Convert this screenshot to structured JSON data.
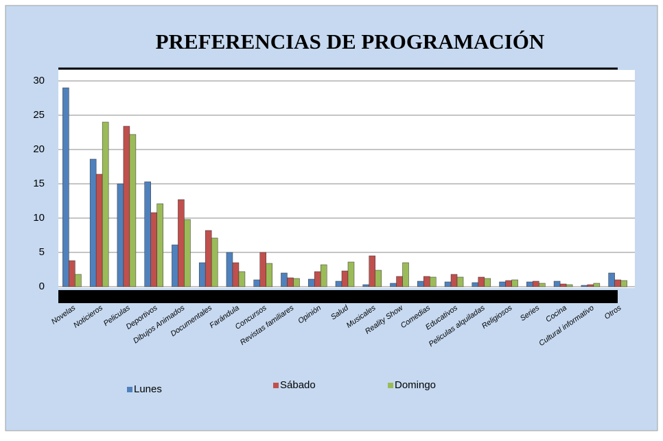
{
  "chart_data": {
    "type": "bar",
    "title": "PREFERENCIAS DE PROGRAMACIÓN",
    "categories": [
      "Novelas",
      "Noticieros",
      "Peliculas",
      "Deportivos",
      "Dibujos Animados",
      "Documentales",
      "Farándula",
      "Concursos",
      "Revistas familiares",
      "Opinión",
      "Salud",
      "Musicales",
      "Reality Show",
      "Comedias",
      "Educativos",
      "Peliculas alquiladas",
      "Religiosos",
      "Series",
      "Cocina",
      "Cultural informativo",
      "Otros"
    ],
    "series": [
      {
        "name": "Lunes",
        "color": "#4f81bd",
        "values": [
          29,
          18.6,
          15,
          15.3,
          6.1,
          3.5,
          5,
          1,
          2,
          1.1,
          0.8,
          0.3,
          0.5,
          0.8,
          0.7,
          0.6,
          0.7,
          0.7,
          0.8,
          0.2,
          2
        ]
      },
      {
        "name": "Sábado",
        "color": "#c0504d",
        "values": [
          3.8,
          16.4,
          23.4,
          10.8,
          12.7,
          8.2,
          3.5,
          5,
          1.3,
          2.2,
          2.3,
          4.5,
          1.5,
          1.5,
          1.8,
          1.4,
          0.9,
          0.8,
          0.4,
          0.3,
          1
        ]
      },
      {
        "name": "Domingo",
        "color": "#9bbb59",
        "values": [
          1.8,
          24,
          22.2,
          12.1,
          9.8,
          7.1,
          2.2,
          3.4,
          1.2,
          3.2,
          3.6,
          2.4,
          3.5,
          1.4,
          1.4,
          1.2,
          1,
          0.5,
          0.3,
          0.5,
          0.9
        ]
      }
    ],
    "ylim": [
      0,
      30
    ],
    "yticks": [
      0,
      5,
      10,
      15,
      20,
      25,
      30
    ],
    "grid": true
  }
}
